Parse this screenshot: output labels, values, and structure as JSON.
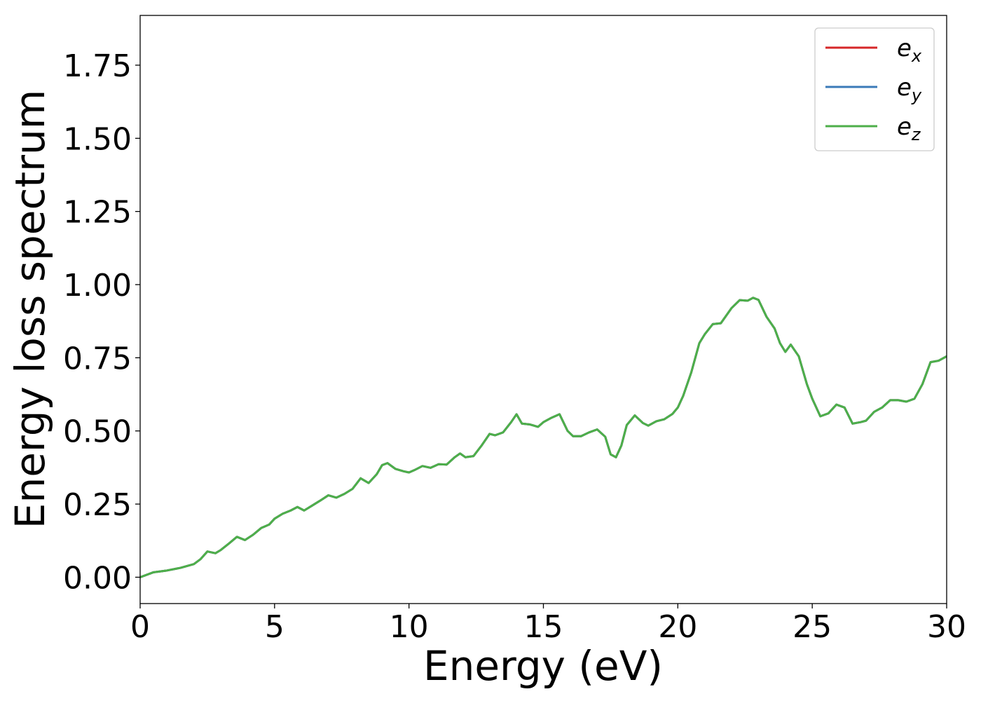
{
  "chart_data": {
    "type": "line",
    "title": "",
    "xlabel": "Energy (eV)",
    "ylabel": "Energy loss spectrum",
    "xlim": [
      0,
      30
    ],
    "ylim": [
      -0.09,
      1.92
    ],
    "xticks": [
      0,
      5,
      10,
      15,
      20,
      25,
      30
    ],
    "xtick_labels": [
      "0",
      "5",
      "10",
      "15",
      "20",
      "25",
      "30"
    ],
    "yticks": [
      0.0,
      0.25,
      0.5,
      0.75,
      1.0,
      1.25,
      1.5,
      1.75
    ],
    "ytick_labels": [
      "0.00",
      "0.25",
      "0.50",
      "0.75",
      "1.00",
      "1.25",
      "1.50",
      "1.75"
    ],
    "grid": false,
    "legend_position": "top-right",
    "x": [
      0,
      0.5,
      1.0,
      1.5,
      2.0,
      2.25,
      2.5,
      2.8,
      3.0,
      3.3,
      3.6,
      3.9,
      4.2,
      4.5,
      4.8,
      5.0,
      5.3,
      5.6,
      5.85,
      6.1,
      6.4,
      6.7,
      7.0,
      7.3,
      7.6,
      7.9,
      8.2,
      8.5,
      8.8,
      9.0,
      9.2,
      9.5,
      9.8,
      10.0,
      10.2,
      10.5,
      10.8,
      11.1,
      11.4,
      11.7,
      11.9,
      12.1,
      12.4,
      12.7,
      13.0,
      13.2,
      13.5,
      13.8,
      14.0,
      14.2,
      14.5,
      14.8,
      15.0,
      15.3,
      15.6,
      15.9,
      16.1,
      16.4,
      16.7,
      17.0,
      17.3,
      17.5,
      17.7,
      17.9,
      18.1,
      18.4,
      18.7,
      18.9,
      19.2,
      19.5,
      19.8,
      20.0,
      20.2,
      20.5,
      20.8,
      21.0,
      21.3,
      21.6,
      22.0,
      22.3,
      22.6,
      22.8,
      23.0,
      23.3,
      23.6,
      23.8,
      24.0,
      24.2,
      24.5,
      24.8,
      25.0,
      25.3,
      25.6,
      25.9,
      26.2,
      26.5,
      26.8,
      27.0,
      27.3,
      27.6,
      27.9,
      28.2,
      28.5,
      28.8,
      29.1,
      29.4,
      29.7,
      30.0
    ],
    "series": [
      {
        "name": "e_x",
        "color": "#d62728",
        "values": [
          0.0,
          0.017,
          0.023,
          0.032,
          0.045,
          0.062,
          0.088,
          0.082,
          0.093,
          0.115,
          0.138,
          0.127,
          0.145,
          0.168,
          0.18,
          0.2,
          0.217,
          0.228,
          0.24,
          0.228,
          0.245,
          0.262,
          0.28,
          0.272,
          0.285,
          0.302,
          0.338,
          0.322,
          0.352,
          0.383,
          0.39,
          0.37,
          0.362,
          0.358,
          0.366,
          0.38,
          0.374,
          0.386,
          0.385,
          0.41,
          0.423,
          0.41,
          0.414,
          0.45,
          0.49,
          0.485,
          0.495,
          0.53,
          0.557,
          0.525,
          0.522,
          0.514,
          0.53,
          0.545,
          0.557,
          0.5,
          0.482,
          0.482,
          0.495,
          0.505,
          0.48,
          0.42,
          0.41,
          0.45,
          0.52,
          0.553,
          0.527,
          0.518,
          0.533,
          0.54,
          0.558,
          0.58,
          0.62,
          0.7,
          0.8,
          0.83,
          0.865,
          0.868,
          0.92,
          0.947,
          0.945,
          0.955,
          0.948,
          0.89,
          0.85,
          0.8,
          0.77,
          0.795,
          0.755,
          0.66,
          0.61,
          0.55,
          0.56,
          0.59,
          0.58,
          0.525,
          0.53,
          0.535,
          0.565,
          0.58,
          0.605,
          0.605,
          0.6,
          0.61,
          0.66,
          0.735,
          0.74,
          0.755
        ]
      },
      {
        "name": "e_y",
        "color": "#3a7ab8",
        "values": [
          0.0,
          0.017,
          0.023,
          0.032,
          0.045,
          0.062,
          0.088,
          0.082,
          0.093,
          0.115,
          0.138,
          0.127,
          0.145,
          0.168,
          0.18,
          0.2,
          0.217,
          0.228,
          0.24,
          0.228,
          0.245,
          0.262,
          0.28,
          0.272,
          0.285,
          0.302,
          0.338,
          0.322,
          0.352,
          0.383,
          0.39,
          0.37,
          0.362,
          0.358,
          0.366,
          0.38,
          0.374,
          0.386,
          0.385,
          0.41,
          0.423,
          0.41,
          0.414,
          0.45,
          0.49,
          0.485,
          0.495,
          0.53,
          0.557,
          0.525,
          0.522,
          0.514,
          0.53,
          0.545,
          0.557,
          0.5,
          0.482,
          0.482,
          0.495,
          0.505,
          0.48,
          0.42,
          0.41,
          0.45,
          0.52,
          0.553,
          0.527,
          0.518,
          0.533,
          0.54,
          0.558,
          0.58,
          0.62,
          0.7,
          0.8,
          0.83,
          0.865,
          0.868,
          0.92,
          0.947,
          0.945,
          0.955,
          0.948,
          0.89,
          0.85,
          0.8,
          0.77,
          0.795,
          0.755,
          0.66,
          0.61,
          0.55,
          0.56,
          0.59,
          0.58,
          0.525,
          0.53,
          0.535,
          0.565,
          0.58,
          0.605,
          0.605,
          0.6,
          0.61,
          0.66,
          0.735,
          0.74,
          0.755
        ]
      },
      {
        "name": "e_z",
        "color": "#4daf4a",
        "values": [
          0.0,
          0.017,
          0.023,
          0.032,
          0.045,
          0.062,
          0.088,
          0.082,
          0.093,
          0.115,
          0.138,
          0.127,
          0.145,
          0.168,
          0.18,
          0.2,
          0.217,
          0.228,
          0.24,
          0.228,
          0.245,
          0.262,
          0.28,
          0.272,
          0.285,
          0.302,
          0.338,
          0.322,
          0.352,
          0.383,
          0.39,
          0.37,
          0.362,
          0.358,
          0.366,
          0.38,
          0.374,
          0.386,
          0.385,
          0.41,
          0.423,
          0.41,
          0.414,
          0.45,
          0.49,
          0.485,
          0.495,
          0.53,
          0.557,
          0.525,
          0.522,
          0.514,
          0.53,
          0.545,
          0.557,
          0.5,
          0.482,
          0.482,
          0.495,
          0.505,
          0.48,
          0.42,
          0.41,
          0.45,
          0.52,
          0.553,
          0.527,
          0.518,
          0.533,
          0.54,
          0.558,
          0.58,
          0.62,
          0.7,
          0.8,
          0.83,
          0.865,
          0.868,
          0.92,
          0.947,
          0.945,
          0.955,
          0.948,
          0.89,
          0.85,
          0.8,
          0.77,
          0.795,
          0.755,
          0.66,
          0.61,
          0.55,
          0.56,
          0.59,
          0.58,
          0.525,
          0.53,
          0.535,
          0.565,
          0.58,
          0.605,
          0.605,
          0.6,
          0.61,
          0.66,
          0.735,
          0.74,
          0.755
        ]
      }
    ],
    "legend": [
      {
        "base": "e",
        "sub": "x",
        "color": "#d62728"
      },
      {
        "base": "e",
        "sub": "y",
        "color": "#3a7ab8"
      },
      {
        "base": "e",
        "sub": "z",
        "color": "#4daf4a"
      }
    ]
  }
}
